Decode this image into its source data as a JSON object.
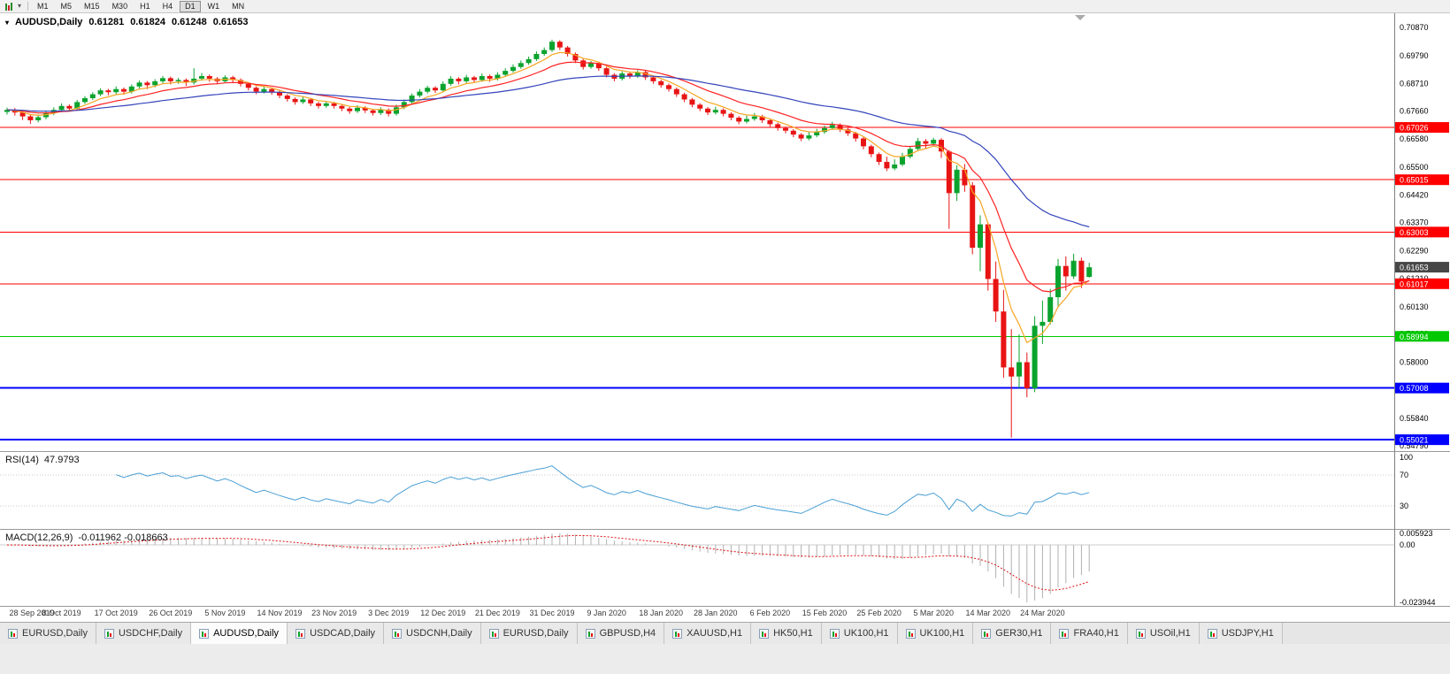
{
  "toolbar": {
    "timeframes": [
      "M1",
      "M5",
      "M15",
      "M30",
      "H1",
      "H4",
      "D1",
      "W1",
      "MN"
    ],
    "active_timeframe": "D1"
  },
  "chart": {
    "symbol_header": {
      "symbol": "AUDUSD,Daily",
      "open": "0.61281",
      "high": "0.61824",
      "low": "0.61248",
      "close": "0.61653"
    },
    "price_axis_labels": [
      "0.70870",
      "0.69790",
      "0.68710",
      "0.67660",
      "0.66580",
      "0.65500",
      "0.64420",
      "0.63370",
      "0.62290",
      "0.61210",
      "0.60130",
      "0.59080",
      "0.58000",
      "0.56920",
      "0.55840",
      "0.54790"
    ],
    "current_price": {
      "value": "0.61653",
      "bg": "#474747"
    },
    "hlines": [
      {
        "price": 0.67026,
        "label": "0.67026",
        "color": "#ff0000",
        "width": 1
      },
      {
        "price": 0.65015,
        "label": "0.65015",
        "color": "#ff0000",
        "width": 1
      },
      {
        "price": 0.63003,
        "label": "0.63003",
        "color": "#ff0000",
        "width": 1
      },
      {
        "price": 0.61017,
        "label": "0.61017",
        "color": "#ff0000",
        "width": 1
      },
      {
        "price": 0.58994,
        "label": "0.58994",
        "color": "#00c800",
        "width": 1
      },
      {
        "price": 0.57008,
        "label": "0.57008",
        "color": "#0000ff",
        "width": 2
      },
      {
        "price": 0.55021,
        "label": "0.55021",
        "color": "#0000ff",
        "width": 2
      }
    ],
    "colors": {
      "bull": "#0aa32e",
      "bear": "#e81414",
      "ma_fast": "#f5a623",
      "ma_mid": "#ff2222",
      "ma_slow": "#3344bb",
      "rsi": "#4a9fd4",
      "macd_signal": "#dd1111",
      "macd_hist": "#b0b0b0"
    },
    "dates": [
      "28 Sep 2019",
      "8 Oct 2019",
      "17 Oct 2019",
      "26 Oct 2019",
      "5 Nov 2019",
      "14 Nov 2019",
      "23 Nov 2019",
      "3 Dec 2019",
      "12 Dec 2019",
      "21 Dec 2019",
      "31 Dec 2019",
      "9 Jan 2020",
      "18 Jan 2020",
      "28 Jan 2020",
      "6 Feb 2020",
      "15 Feb 2020",
      "25 Feb 2020",
      "5 Mar 2020",
      "14 Mar 2020",
      "24 Mar 2020"
    ]
  },
  "chart_data": {
    "type": "candlestick",
    "symbol": "AUDUSD",
    "timeframe": "Daily",
    "x_range": [
      "28 Sep 2019",
      "24 Mar 2020"
    ],
    "y_range": [
      0.5479,
      0.7087
    ],
    "ohlc": [
      [
        0.6762,
        0.6779,
        0.6752,
        0.677
      ],
      [
        0.677,
        0.6777,
        0.6748,
        0.676
      ],
      [
        0.676,
        0.6766,
        0.6731,
        0.6745
      ],
      [
        0.6745,
        0.6751,
        0.6716,
        0.673
      ],
      [
        0.673,
        0.6752,
        0.6722,
        0.6742
      ],
      [
        0.6742,
        0.6768,
        0.6734,
        0.6758
      ],
      [
        0.6758,
        0.678,
        0.675,
        0.677
      ],
      [
        0.677,
        0.6795,
        0.6762,
        0.6785
      ],
      [
        0.6785,
        0.6791,
        0.6766,
        0.6775
      ],
      [
        0.6775,
        0.6808,
        0.6769,
        0.68
      ],
      [
        0.68,
        0.6823,
        0.6793,
        0.6815
      ],
      [
        0.6815,
        0.6838,
        0.6808,
        0.683
      ],
      [
        0.683,
        0.6853,
        0.6823,
        0.6845
      ],
      [
        0.6845,
        0.6851,
        0.6826,
        0.6838
      ],
      [
        0.6838,
        0.686,
        0.683,
        0.685
      ],
      [
        0.685,
        0.6856,
        0.6828,
        0.684
      ],
      [
        0.684,
        0.6868,
        0.6833,
        0.686
      ],
      [
        0.686,
        0.6883,
        0.6852,
        0.6875
      ],
      [
        0.6875,
        0.6881,
        0.685,
        0.6865
      ],
      [
        0.6865,
        0.6888,
        0.6857,
        0.688
      ],
      [
        0.688,
        0.69,
        0.6872,
        0.6892
      ],
      [
        0.6892,
        0.6898,
        0.6868,
        0.688
      ],
      [
        0.688,
        0.6893,
        0.687,
        0.6885
      ],
      [
        0.6885,
        0.6891,
        0.6862,
        0.6875
      ],
      [
        0.6875,
        0.693,
        0.6867,
        0.689
      ],
      [
        0.689,
        0.6912,
        0.6882,
        0.69
      ],
      [
        0.69,
        0.6906,
        0.6878,
        0.689
      ],
      [
        0.689,
        0.6896,
        0.6868,
        0.688
      ],
      [
        0.688,
        0.6903,
        0.6873,
        0.6895
      ],
      [
        0.6895,
        0.6901,
        0.6876,
        0.6885
      ],
      [
        0.6885,
        0.6891,
        0.686,
        0.687
      ],
      [
        0.687,
        0.6876,
        0.6845,
        0.6855
      ],
      [
        0.6855,
        0.6861,
        0.683,
        0.684
      ],
      [
        0.684,
        0.686,
        0.6833,
        0.685
      ],
      [
        0.685,
        0.6856,
        0.6828,
        0.6838
      ],
      [
        0.6838,
        0.6844,
        0.6815,
        0.6825
      ],
      [
        0.6825,
        0.6831,
        0.6802,
        0.6812
      ],
      [
        0.6812,
        0.6818,
        0.679,
        0.68
      ],
      [
        0.68,
        0.682,
        0.6793,
        0.681
      ],
      [
        0.681,
        0.6816,
        0.6785,
        0.6795
      ],
      [
        0.6795,
        0.6801,
        0.6775,
        0.6785
      ],
      [
        0.6785,
        0.6805,
        0.6778,
        0.6795
      ],
      [
        0.6795,
        0.6801,
        0.6775,
        0.6785
      ],
      [
        0.6785,
        0.6791,
        0.6765,
        0.6775
      ],
      [
        0.6775,
        0.6781,
        0.6755,
        0.6765
      ],
      [
        0.6765,
        0.6788,
        0.6758,
        0.6778
      ],
      [
        0.6778,
        0.6784,
        0.6758,
        0.6768
      ],
      [
        0.6768,
        0.6774,
        0.6748,
        0.6758
      ],
      [
        0.6758,
        0.678,
        0.675,
        0.677
      ],
      [
        0.677,
        0.6776,
        0.6745,
        0.6755
      ],
      [
        0.6755,
        0.679,
        0.6748,
        0.678
      ],
      [
        0.678,
        0.681,
        0.6773,
        0.68
      ],
      [
        0.68,
        0.6833,
        0.6793,
        0.6825
      ],
      [
        0.6825,
        0.685,
        0.6818,
        0.684
      ],
      [
        0.684,
        0.6863,
        0.6833,
        0.6855
      ],
      [
        0.6855,
        0.6861,
        0.6835,
        0.6845
      ],
      [
        0.6845,
        0.688,
        0.6838,
        0.687
      ],
      [
        0.687,
        0.69,
        0.6863,
        0.689
      ],
      [
        0.689,
        0.6896,
        0.6868,
        0.688
      ],
      [
        0.688,
        0.6905,
        0.6873,
        0.6895
      ],
      [
        0.6895,
        0.6901,
        0.6873,
        0.6885
      ],
      [
        0.6885,
        0.691,
        0.6878,
        0.69
      ],
      [
        0.69,
        0.6906,
        0.6878,
        0.689
      ],
      [
        0.689,
        0.6915,
        0.6883,
        0.6905
      ],
      [
        0.6905,
        0.693,
        0.6898,
        0.692
      ],
      [
        0.692,
        0.6945,
        0.6913,
        0.6935
      ],
      [
        0.6935,
        0.696,
        0.6928,
        0.695
      ],
      [
        0.695,
        0.6975,
        0.6943,
        0.6965
      ],
      [
        0.6965,
        0.6995,
        0.6958,
        0.6985
      ],
      [
        0.6985,
        0.701,
        0.6978,
        0.7
      ],
      [
        0.7,
        0.704,
        0.6993,
        0.7032
      ],
      [
        0.7032,
        0.7038,
        0.7,
        0.701
      ],
      [
        0.701,
        0.7016,
        0.6975,
        0.6985
      ],
      [
        0.6985,
        0.6991,
        0.695,
        0.696
      ],
      [
        0.696,
        0.6966,
        0.6925,
        0.6935
      ],
      [
        0.6935,
        0.6958,
        0.6928,
        0.695
      ],
      [
        0.695,
        0.6956,
        0.692,
        0.693
      ],
      [
        0.693,
        0.6936,
        0.6895,
        0.6905
      ],
      [
        0.6905,
        0.6911,
        0.688,
        0.689
      ],
      [
        0.689,
        0.6918,
        0.6883,
        0.691
      ],
      [
        0.691,
        0.6916,
        0.689,
        0.69
      ],
      [
        0.69,
        0.6923,
        0.6893,
        0.6915
      ],
      [
        0.6915,
        0.6921,
        0.6885,
        0.6895
      ],
      [
        0.6895,
        0.6901,
        0.687,
        0.688
      ],
      [
        0.688,
        0.6886,
        0.6855,
        0.6865
      ],
      [
        0.6865,
        0.6871,
        0.684,
        0.685
      ],
      [
        0.685,
        0.6856,
        0.682,
        0.683
      ],
      [
        0.683,
        0.6836,
        0.68,
        0.681
      ],
      [
        0.681,
        0.6816,
        0.678,
        0.679
      ],
      [
        0.679,
        0.6796,
        0.6765,
        0.6775
      ],
      [
        0.6775,
        0.6781,
        0.675,
        0.676
      ],
      [
        0.676,
        0.6782,
        0.6753,
        0.677
      ],
      [
        0.677,
        0.6776,
        0.6745,
        0.6755
      ],
      [
        0.6755,
        0.6761,
        0.673,
        0.674
      ],
      [
        0.674,
        0.6746,
        0.6715,
        0.6725
      ],
      [
        0.6725,
        0.6748,
        0.6718,
        0.6735
      ],
      [
        0.6735,
        0.6758,
        0.6728,
        0.6745
      ],
      [
        0.6745,
        0.6751,
        0.672,
        0.673
      ],
      [
        0.673,
        0.6736,
        0.6705,
        0.6715
      ],
      [
        0.6715,
        0.6721,
        0.669,
        0.67
      ],
      [
        0.67,
        0.6706,
        0.668,
        0.669
      ],
      [
        0.669,
        0.6696,
        0.6665,
        0.6675
      ],
      [
        0.6675,
        0.6681,
        0.665,
        0.666
      ],
      [
        0.666,
        0.6684,
        0.6653,
        0.6672
      ],
      [
        0.6672,
        0.6697,
        0.6665,
        0.6685
      ],
      [
        0.6685,
        0.671,
        0.6678,
        0.67
      ],
      [
        0.67,
        0.6724,
        0.6693,
        0.6712
      ],
      [
        0.6712,
        0.6718,
        0.6685,
        0.6695
      ],
      [
        0.6695,
        0.6701,
        0.667,
        0.668
      ],
      [
        0.668,
        0.6686,
        0.6648,
        0.666
      ],
      [
        0.666,
        0.6666,
        0.6618,
        0.663
      ],
      [
        0.663,
        0.6636,
        0.6588,
        0.66
      ],
      [
        0.66,
        0.6606,
        0.6558,
        0.657
      ],
      [
        0.657,
        0.659,
        0.6535,
        0.6545
      ],
      [
        0.6545,
        0.658,
        0.6538,
        0.656
      ],
      [
        0.656,
        0.6605,
        0.6553,
        0.659
      ],
      [
        0.659,
        0.6632,
        0.6583,
        0.662
      ],
      [
        0.662,
        0.6662,
        0.6613,
        0.665
      ],
      [
        0.665,
        0.6658,
        0.6622,
        0.664
      ],
      [
        0.664,
        0.6663,
        0.663,
        0.6655
      ],
      [
        0.6655,
        0.6661,
        0.6585,
        0.661
      ],
      [
        0.661,
        0.6616,
        0.6313,
        0.645
      ],
      [
        0.645,
        0.6557,
        0.642,
        0.654
      ],
      [
        0.654,
        0.6562,
        0.6455,
        0.648
      ],
      [
        0.648,
        0.6492,
        0.6215,
        0.624
      ],
      [
        0.624,
        0.6365,
        0.615,
        0.633
      ],
      [
        0.633,
        0.6337,
        0.6075,
        0.612
      ],
      [
        0.612,
        0.6187,
        0.5955,
        0.5995
      ],
      [
        0.5995,
        0.6078,
        0.574,
        0.578
      ],
      [
        0.578,
        0.5927,
        0.551,
        0.5745
      ],
      [
        0.5745,
        0.5907,
        0.57,
        0.58
      ],
      [
        0.58,
        0.5837,
        0.5665,
        0.57
      ],
      [
        0.57,
        0.5977,
        0.5685,
        0.594
      ],
      [
        0.594,
        0.6037,
        0.587,
        0.5955
      ],
      [
        0.5955,
        0.6082,
        0.5945,
        0.605
      ],
      [
        0.605,
        0.6197,
        0.601,
        0.617
      ],
      [
        0.617,
        0.6207,
        0.6075,
        0.613
      ],
      [
        0.613,
        0.6217,
        0.612,
        0.619
      ],
      [
        0.619,
        0.6202,
        0.6085,
        0.611
      ],
      [
        0.6128,
        0.6182,
        0.6125,
        0.6165
      ]
    ],
    "indicators": {
      "ma": [
        {
          "period": 6,
          "color": "#f5a623"
        },
        {
          "period": 14,
          "color": "#ff2222"
        },
        {
          "period": 40,
          "color": "#3344bb"
        }
      ],
      "rsi": {
        "label": "RSI(14)",
        "value": "47.9793",
        "period": 14,
        "levels": [
          70,
          30
        ],
        "axis_labels": [
          "100",
          "70",
          "30"
        ]
      },
      "macd": {
        "label": "MACD(12,26,9)",
        "values": "-0.011962 -0.018663",
        "fast": 12,
        "slow": 26,
        "signal": 9,
        "axis_labels": [
          "0.005923",
          "0.00",
          "-0.023944"
        ]
      }
    }
  },
  "tabs": {
    "active_index": 2,
    "items": [
      {
        "label": "EURUSD,Daily"
      },
      {
        "label": "USDCHF,Daily"
      },
      {
        "label": "AUDUSD,Daily"
      },
      {
        "label": "USDCAD,Daily"
      },
      {
        "label": "USDCNH,Daily"
      },
      {
        "label": "EURUSD,Daily"
      },
      {
        "label": "GBPUSD,H4"
      },
      {
        "label": "XAUUSD,H1"
      },
      {
        "label": "HK50,H1"
      },
      {
        "label": "UK100,H1"
      },
      {
        "label": "UK100,H1"
      },
      {
        "label": "GER30,H1"
      },
      {
        "label": "FRA40,H1"
      },
      {
        "label": "USOil,H1"
      },
      {
        "label": "USDJPY,H1"
      }
    ]
  }
}
